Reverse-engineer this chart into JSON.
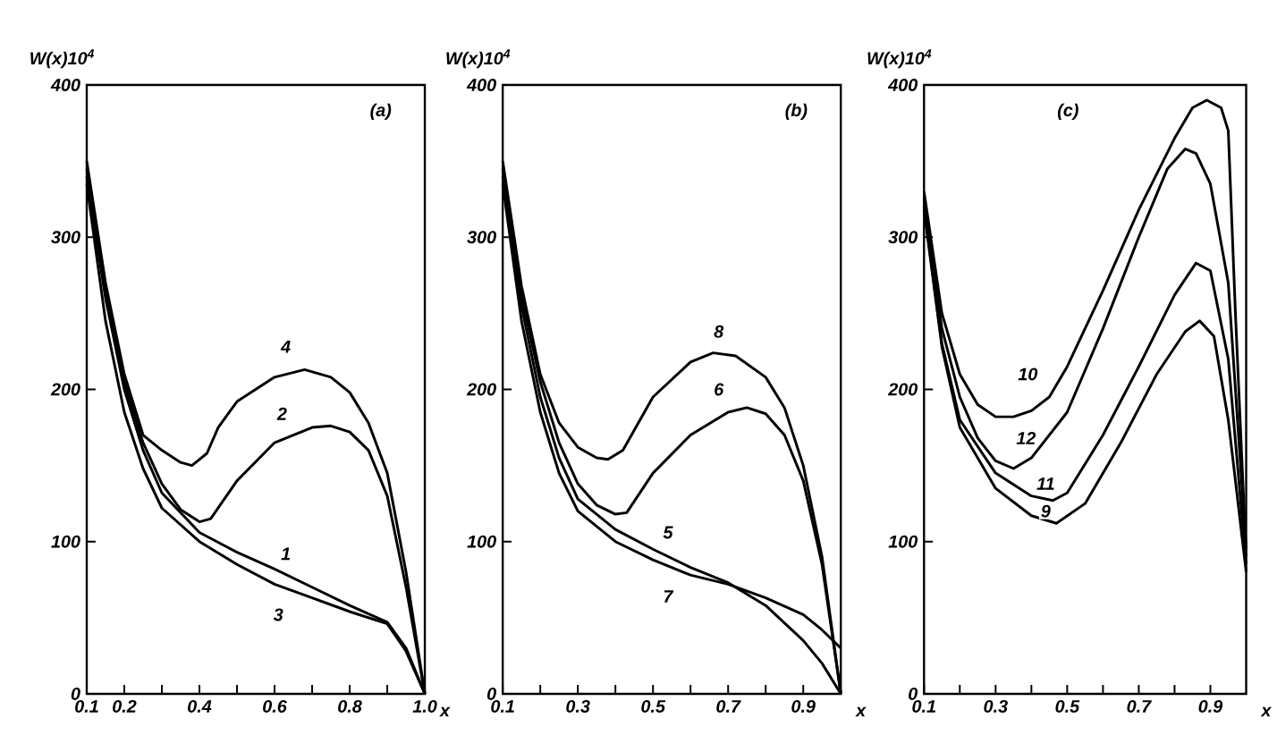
{
  "chart_data": [
    {
      "type": "line",
      "title": "(a)",
      "xlabel": "x",
      "ylabel": "W(x)10$^{4}$",
      "xlim": [
        0.1,
        1.0
      ],
      "ylim": [
        0,
        400
      ],
      "xticks": [
        0.1,
        0.2,
        {
          "value": 0.3,
          "label": null
        },
        0.4,
        {
          "value": 0.5,
          "label": null
        },
        0.6,
        {
          "value": 0.7,
          "label": null
        },
        0.8,
        {
          "value": 0.9,
          "label": null
        },
        {
          "value": 1.0,
          "label": "1.0"
        }
      ],
      "yticks": [
        0,
        100,
        200,
        300,
        400
      ],
      "grid": false,
      "marker": "none",
      "line_style": "solid",
      "series": [
        {
          "color": "#000000",
          "x": [
            0.1,
            0.15,
            0.2,
            0.25,
            0.3,
            0.4,
            0.5,
            0.6,
            0.7,
            0.8,
            0.9,
            0.95,
            1.0
          ],
          "values": [
            340,
            260,
            200,
            160,
            132,
            106,
            93,
            82,
            70,
            58,
            47,
            30,
            0
          ]
        },
        {
          "color": "#000000",
          "x": [
            0.1,
            0.15,
            0.2,
            0.25,
            0.3,
            0.35,
            0.4,
            0.43,
            0.5,
            0.6,
            0.7,
            0.75,
            0.8,
            0.85,
            0.9,
            0.95,
            1.0
          ],
          "values": [
            345,
            265,
            205,
            165,
            138,
            121,
            113,
            115,
            140,
            165,
            175,
            176,
            172,
            160,
            130,
            70,
            0
          ]
        },
        {
          "color": "#000000",
          "x": [
            0.1,
            0.15,
            0.2,
            0.25,
            0.3,
            0.4,
            0.5,
            0.6,
            0.7,
            0.8,
            0.9,
            0.95,
            1.0
          ],
          "values": [
            335,
            245,
            185,
            148,
            122,
            100,
            85,
            72,
            63,
            54,
            46,
            28,
            0
          ]
        },
        {
          "color": "#000000",
          "x": [
            0.1,
            0.15,
            0.2,
            0.25,
            0.3,
            0.35,
            0.38,
            0.42,
            0.45,
            0.5,
            0.6,
            0.68,
            0.75,
            0.8,
            0.85,
            0.9,
            0.95,
            1.0
          ],
          "values": [
            350,
            270,
            210,
            170,
            160,
            152,
            150,
            158,
            175,
            192,
            208,
            213,
            208,
            198,
            178,
            145,
            80,
            0
          ]
        }
      ],
      "annotations": [
        {
          "text": "1",
          "x": 0.63,
          "y": 92
        },
        {
          "text": "2",
          "x": 0.62,
          "y": 184
        },
        {
          "text": "3",
          "x": 0.61,
          "y": 52
        },
        {
          "text": "4",
          "x": 0.63,
          "y": 228
        }
      ]
    },
    {
      "type": "line",
      "title": "(b)",
      "xlabel": "x",
      "ylabel": "W(x)10$^{4}$",
      "xlim": [
        0.1,
        1.0
      ],
      "ylim": [
        0,
        400
      ],
      "xticks": [
        0.1,
        {
          "value": 0.2,
          "label": null
        },
        0.3,
        {
          "value": 0.4,
          "label": null
        },
        0.5,
        {
          "value": 0.6,
          "label": null
        },
        0.7,
        {
          "value": 0.8,
          "label": null
        },
        0.9
      ],
      "yticks": [
        0,
        100,
        200,
        300,
        400
      ],
      "grid": false,
      "marker": "none",
      "line_style": "solid",
      "series": [
        {
          "color": "#000000",
          "x": [
            0.1,
            0.15,
            0.2,
            0.25,
            0.3,
            0.4,
            0.5,
            0.6,
            0.7,
            0.8,
            0.9,
            0.95,
            1.0
          ],
          "values": [
            340,
            255,
            195,
            155,
            128,
            108,
            95,
            83,
            73,
            58,
            35,
            20,
            0
          ]
        },
        {
          "color": "#000000",
          "x": [
            0.1,
            0.15,
            0.2,
            0.25,
            0.3,
            0.35,
            0.4,
            0.43,
            0.5,
            0.6,
            0.7,
            0.75,
            0.8,
            0.85,
            0.9,
            0.95,
            1.0
          ],
          "values": [
            345,
            262,
            205,
            165,
            138,
            124,
            118,
            119,
            145,
            170,
            185,
            188,
            184,
            170,
            140,
            85,
            0
          ]
        },
        {
          "color": "#000000",
          "x": [
            0.1,
            0.15,
            0.2,
            0.25,
            0.3,
            0.4,
            0.5,
            0.6,
            0.7,
            0.8,
            0.9,
            0.95,
            1.0
          ],
          "values": [
            335,
            245,
            185,
            145,
            120,
            100,
            88,
            78,
            72,
            63,
            52,
            42,
            30
          ]
        },
        {
          "color": "#000000",
          "x": [
            0.1,
            0.15,
            0.2,
            0.25,
            0.3,
            0.35,
            0.38,
            0.42,
            0.5,
            0.6,
            0.66,
            0.72,
            0.8,
            0.85,
            0.9,
            0.95,
            1.0
          ],
          "values": [
            350,
            268,
            210,
            178,
            162,
            155,
            154,
            160,
            195,
            218,
            224,
            222,
            208,
            188,
            150,
            90,
            0
          ]
        }
      ],
      "annotations": [
        {
          "text": "5",
          "x": 0.54,
          "y": 106
        },
        {
          "text": "6",
          "x": 0.675,
          "y": 200
        },
        {
          "text": "7",
          "x": 0.54,
          "y": 64
        },
        {
          "text": "8",
          "x": 0.675,
          "y": 238
        }
      ]
    },
    {
      "type": "line",
      "title": "(c)",
      "xlabel": "x",
      "ylabel": "W(x)10$^{4}$",
      "xlim": [
        0.1,
        1.0
      ],
      "ylim": [
        0,
        400
      ],
      "xticks": [
        0.1,
        {
          "value": 0.2,
          "label": null
        },
        0.3,
        {
          "value": 0.4,
          "label": null
        },
        0.5,
        {
          "value": 0.6,
          "label": null
        },
        0.7,
        {
          "value": 0.8,
          "label": null
        },
        0.9
      ],
      "yticks": [
        0,
        100,
        200,
        300,
        400
      ],
      "grid": false,
      "marker": "none",
      "line_style": "solid",
      "series": [
        {
          "color": "#000000",
          "x": [
            0.1,
            0.15,
            0.2,
            0.3,
            0.4,
            0.47,
            0.55,
            0.65,
            0.75,
            0.83,
            0.87,
            0.91,
            0.95,
            1.0
          ],
          "values": [
            318,
            228,
            175,
            135,
            117,
            112,
            125,
            165,
            210,
            238,
            245,
            235,
            180,
            80
          ]
        },
        {
          "color": "#000000",
          "x": [
            0.1,
            0.15,
            0.2,
            0.25,
            0.3,
            0.35,
            0.4,
            0.45,
            0.5,
            0.6,
            0.7,
            0.8,
            0.85,
            0.89,
            0.93,
            0.95,
            0.97,
            1.0
          ],
          "values": [
            330,
            250,
            210,
            190,
            182,
            182,
            186,
            195,
            215,
            265,
            318,
            365,
            385,
            390,
            385,
            370,
            250,
            90
          ]
        },
        {
          "color": "#000000",
          "x": [
            0.1,
            0.15,
            0.2,
            0.3,
            0.4,
            0.46,
            0.5,
            0.6,
            0.7,
            0.8,
            0.86,
            0.9,
            0.95,
            1.0
          ],
          "values": [
            320,
            230,
            180,
            145,
            130,
            127,
            132,
            170,
            215,
            262,
            283,
            278,
            220,
            85
          ]
        },
        {
          "color": "#000000",
          "x": [
            0.1,
            0.15,
            0.2,
            0.25,
            0.3,
            0.35,
            0.4,
            0.5,
            0.6,
            0.7,
            0.78,
            0.83,
            0.86,
            0.9,
            0.95,
            1.0
          ],
          "values": [
            325,
            240,
            195,
            168,
            153,
            148,
            155,
            185,
            240,
            300,
            345,
            358,
            355,
            335,
            270,
            95
          ]
        }
      ],
      "annotations": [
        {
          "text": "9",
          "x": 0.44,
          "y": 120
        },
        {
          "text": "10",
          "x": 0.39,
          "y": 210
        },
        {
          "text": "11",
          "x": 0.44,
          "y": 138
        },
        {
          "text": "12",
          "x": 0.385,
          "y": 168
        }
      ]
    }
  ]
}
